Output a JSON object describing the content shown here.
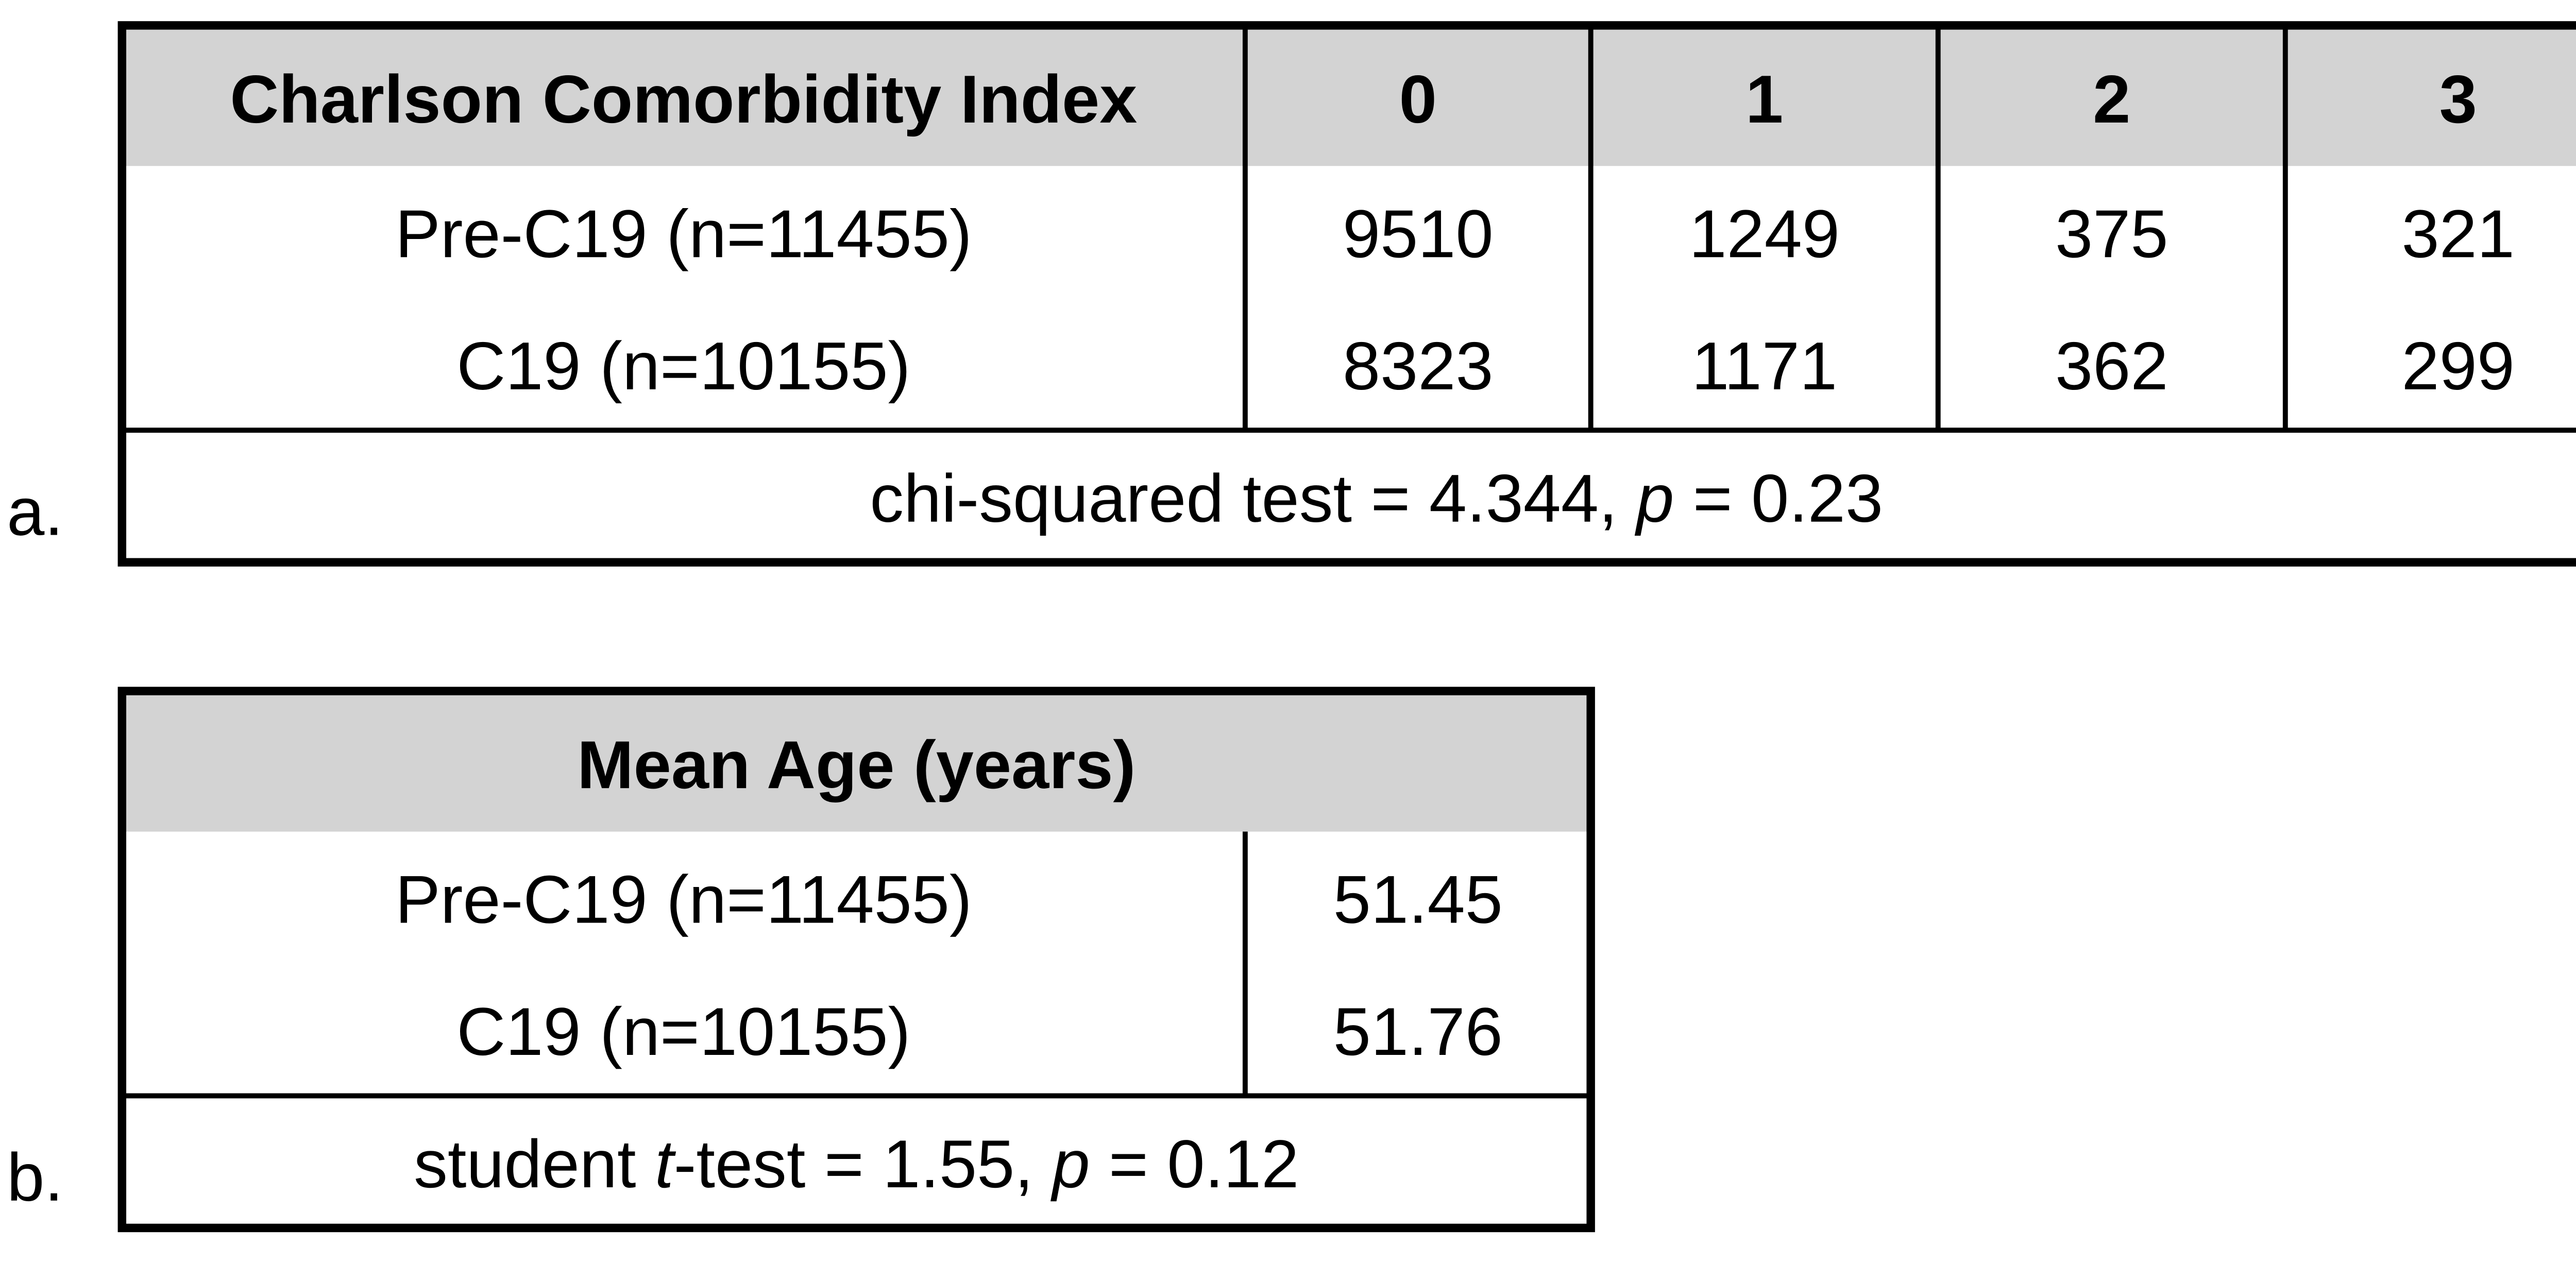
{
  "panels": [
    {
      "label": "a.",
      "header": [
        "Charlson Comorbidity Index",
        "0",
        "1",
        "2",
        "3"
      ],
      "rows": [
        [
          "Pre-C19 (n=11455)",
          9510,
          1249,
          375,
          321
        ],
        [
          "C19 (n=10155)",
          8323,
          1171,
          362,
          299
        ]
      ],
      "footer": [
        "chi-squared test = 4.344, ",
        "p",
        " = 0.23"
      ]
    },
    {
      "label": "b.",
      "header": [
        "Mean Age (years)"
      ],
      "rows": [
        [
          "Pre-C19 (n=11455)",
          51.45
        ],
        [
          "C19 (n=10155)",
          51.76
        ]
      ],
      "footer": [
        "student ",
        "t",
        "-test = 1.55, ",
        "p",
        " = 0.12"
      ]
    }
  ]
}
